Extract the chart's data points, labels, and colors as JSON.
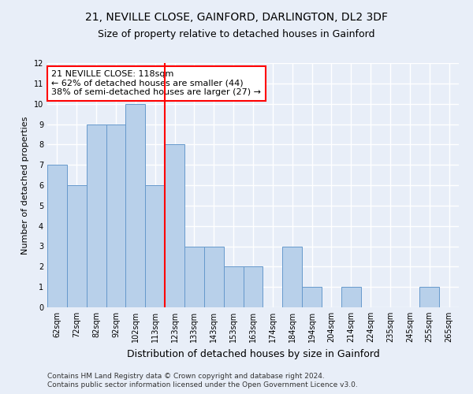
{
  "title1": "21, NEVILLE CLOSE, GAINFORD, DARLINGTON, DL2 3DF",
  "title2": "Size of property relative to detached houses in Gainford",
  "xlabel": "Distribution of detached houses by size in Gainford",
  "ylabel": "Number of detached properties",
  "categories": [
    "62sqm",
    "72sqm",
    "82sqm",
    "92sqm",
    "102sqm",
    "113sqm",
    "123sqm",
    "133sqm",
    "143sqm",
    "153sqm",
    "163sqm",
    "174sqm",
    "184sqm",
    "194sqm",
    "204sqm",
    "214sqm",
    "224sqm",
    "235sqm",
    "245sqm",
    "255sqm",
    "265sqm"
  ],
  "values": [
    7,
    6,
    9,
    9,
    10,
    6,
    8,
    3,
    3,
    2,
    2,
    0,
    3,
    1,
    0,
    1,
    0,
    0,
    0,
    1,
    0
  ],
  "bar_color": "#b8d0ea",
  "bar_edge_color": "#6699cc",
  "annotation_line1": "21 NEVILLE CLOSE: 118sqm",
  "annotation_line2": "← 62% of detached houses are smaller (44)",
  "annotation_line3": "38% of semi-detached houses are larger (27) →",
  "annotation_box_color": "white",
  "annotation_box_edge_color": "red",
  "ylim": [
    0,
    12
  ],
  "yticks": [
    0,
    1,
    2,
    3,
    4,
    5,
    6,
    7,
    8,
    9,
    10,
    11,
    12
  ],
  "footer1": "Contains HM Land Registry data © Crown copyright and database right 2024.",
  "footer2": "Contains public sector information licensed under the Open Government Licence v3.0.",
  "background_color": "#e8eef8",
  "grid_color": "#ffffff",
  "title1_fontsize": 10,
  "title2_fontsize": 9,
  "tick_fontsize": 7,
  "ylabel_fontsize": 8,
  "xlabel_fontsize": 9,
  "footer_fontsize": 6.5,
  "annot_fontsize": 8
}
